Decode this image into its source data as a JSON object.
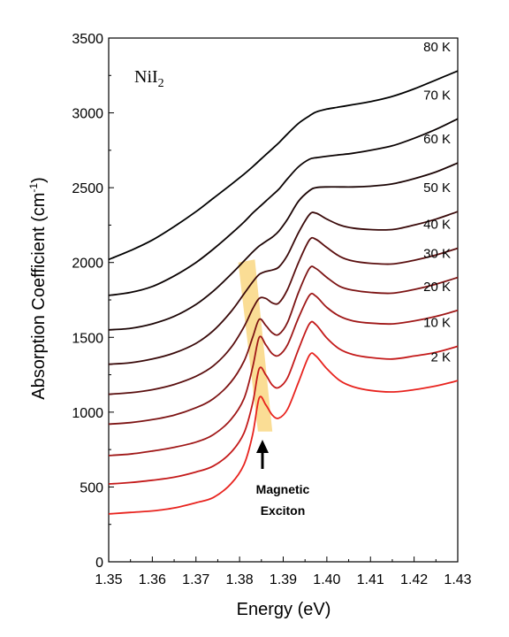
{
  "chart_data": {
    "type": "line",
    "title": "",
    "sample_label": {
      "main": "NiI",
      "subscript": "2"
    },
    "xlabel": "Energy (eV)",
    "ylabel": "Absorption Coefficient (cm",
    "ylabel_sup": "-1",
    "ylabel_close": ")",
    "xlim": [
      1.35,
      1.43
    ],
    "ylim": [
      0,
      3500
    ],
    "xticks": [
      "1.35",
      "1.36",
      "1.37",
      "1.38",
      "1.39",
      "1.40",
      "1.41",
      "1.42",
      "1.43"
    ],
    "yticks": [
      "0",
      "500",
      "1000",
      "1500",
      "2000",
      "2500",
      "3000",
      "3500"
    ],
    "annotation": {
      "line1": "Magnetic",
      "line2": "Exciton"
    },
    "highlight_color": "#fad98a",
    "series": [
      {
        "name": "2 K",
        "color": "#e8231e",
        "points": [
          [
            1.35,
            320
          ],
          [
            1.355,
            330
          ],
          [
            1.36,
            340
          ],
          [
            1.365,
            360
          ],
          [
            1.37,
            395
          ],
          [
            1.374,
            430
          ],
          [
            1.378,
            520
          ],
          [
            1.381,
            650
          ],
          [
            1.383,
            850
          ],
          [
            1.3845,
            1095
          ],
          [
            1.386,
            1050
          ],
          [
            1.3875,
            980
          ],
          [
            1.389,
            960
          ],
          [
            1.391,
            1020
          ],
          [
            1.3935,
            1200
          ],
          [
            1.396,
            1380
          ],
          [
            1.3975,
            1375
          ],
          [
            1.4,
            1290
          ],
          [
            1.403,
            1210
          ],
          [
            1.406,
            1170
          ],
          [
            1.41,
            1145
          ],
          [
            1.415,
            1135
          ],
          [
            1.42,
            1150
          ],
          [
            1.425,
            1175
          ],
          [
            1.43,
            1210
          ]
        ]
      },
      {
        "name": "10 K",
        "color": "#c41a1a",
        "points": [
          [
            1.35,
            520
          ],
          [
            1.355,
            530
          ],
          [
            1.36,
            545
          ],
          [
            1.365,
            565
          ],
          [
            1.37,
            600
          ],
          [
            1.374,
            640
          ],
          [
            1.378,
            730
          ],
          [
            1.381,
            860
          ],
          [
            1.383,
            1060
          ],
          [
            1.3845,
            1290
          ],
          [
            1.386,
            1250
          ],
          [
            1.3875,
            1180
          ],
          [
            1.389,
            1165
          ],
          [
            1.391,
            1230
          ],
          [
            1.3935,
            1420
          ],
          [
            1.396,
            1590
          ],
          [
            1.3975,
            1585
          ],
          [
            1.4,
            1495
          ],
          [
            1.403,
            1420
          ],
          [
            1.406,
            1385
          ],
          [
            1.41,
            1365
          ],
          [
            1.415,
            1355
          ],
          [
            1.42,
            1375
          ],
          [
            1.425,
            1400
          ],
          [
            1.43,
            1440
          ]
        ]
      },
      {
        "name": "20 K",
        "color": "#a01818",
        "points": [
          [
            1.35,
            710
          ],
          [
            1.355,
            720
          ],
          [
            1.36,
            740
          ],
          [
            1.365,
            765
          ],
          [
            1.37,
            800
          ],
          [
            1.374,
            850
          ],
          [
            1.378,
            950
          ],
          [
            1.381,
            1090
          ],
          [
            1.383,
            1300
          ],
          [
            1.3845,
            1500
          ],
          [
            1.386,
            1450
          ],
          [
            1.3875,
            1390
          ],
          [
            1.389,
            1380
          ],
          [
            1.391,
            1450
          ],
          [
            1.3935,
            1630
          ],
          [
            1.396,
            1780
          ],
          [
            1.3975,
            1775
          ],
          [
            1.4,
            1700
          ],
          [
            1.403,
            1640
          ],
          [
            1.406,
            1610
          ],
          [
            1.41,
            1595
          ],
          [
            1.415,
            1590
          ],
          [
            1.42,
            1610
          ],
          [
            1.425,
            1640
          ],
          [
            1.43,
            1680
          ]
        ]
      },
      {
        "name": "30 K",
        "color": "#7d1414",
        "points": [
          [
            1.35,
            920
          ],
          [
            1.355,
            930
          ],
          [
            1.36,
            950
          ],
          [
            1.365,
            980
          ],
          [
            1.37,
            1030
          ],
          [
            1.374,
            1090
          ],
          [
            1.378,
            1200
          ],
          [
            1.381,
            1340
          ],
          [
            1.383,
            1500
          ],
          [
            1.3845,
            1620
          ],
          [
            1.386,
            1580
          ],
          [
            1.3875,
            1530
          ],
          [
            1.389,
            1520
          ],
          [
            1.391,
            1600
          ],
          [
            1.3935,
            1800
          ],
          [
            1.396,
            1960
          ],
          [
            1.3975,
            1960
          ],
          [
            1.4,
            1900
          ],
          [
            1.403,
            1840
          ],
          [
            1.406,
            1815
          ],
          [
            1.41,
            1800
          ],
          [
            1.415,
            1795
          ],
          [
            1.42,
            1820
          ],
          [
            1.425,
            1855
          ],
          [
            1.43,
            1900
          ]
        ]
      },
      {
        "name": "40 K",
        "color": "#5a0f0f",
        "points": [
          [
            1.35,
            1120
          ],
          [
            1.355,
            1130
          ],
          [
            1.36,
            1150
          ],
          [
            1.365,
            1185
          ],
          [
            1.37,
            1240
          ],
          [
            1.374,
            1310
          ],
          [
            1.378,
            1430
          ],
          [
            1.381,
            1570
          ],
          [
            1.383,
            1690
          ],
          [
            1.3845,
            1760
          ],
          [
            1.386,
            1760
          ],
          [
            1.3875,
            1730
          ],
          [
            1.389,
            1730
          ],
          [
            1.391,
            1820
          ],
          [
            1.3935,
            2000
          ],
          [
            1.396,
            2150
          ],
          [
            1.3975,
            2155
          ],
          [
            1.4,
            2100
          ],
          [
            1.403,
            2040
          ],
          [
            1.406,
            2010
          ],
          [
            1.41,
            1995
          ],
          [
            1.415,
            1990
          ],
          [
            1.42,
            2015
          ],
          [
            1.425,
            2050
          ],
          [
            1.43,
            2095
          ]
        ]
      },
      {
        "name": "50 K",
        "color": "#3a0a0a",
        "points": [
          [
            1.35,
            1320
          ],
          [
            1.355,
            1330
          ],
          [
            1.36,
            1355
          ],
          [
            1.365,
            1395
          ],
          [
            1.37,
            1460
          ],
          [
            1.374,
            1545
          ],
          [
            1.378,
            1670
          ],
          [
            1.381,
            1790
          ],
          [
            1.383,
            1870
          ],
          [
            1.3845,
            1920
          ],
          [
            1.386,
            1940
          ],
          [
            1.3875,
            1950
          ],
          [
            1.389,
            1970
          ],
          [
            1.391,
            2050
          ],
          [
            1.3935,
            2200
          ],
          [
            1.396,
            2320
          ],
          [
            1.3975,
            2330
          ],
          [
            1.4,
            2290
          ],
          [
            1.403,
            2250
          ],
          [
            1.406,
            2230
          ],
          [
            1.41,
            2220
          ],
          [
            1.415,
            2220
          ],
          [
            1.42,
            2250
          ],
          [
            1.425,
            2290
          ],
          [
            1.43,
            2340
          ]
        ]
      },
      {
        "name": "60 K",
        "color": "#1c0505",
        "points": [
          [
            1.35,
            1550
          ],
          [
            1.355,
            1560
          ],
          [
            1.36,
            1590
          ],
          [
            1.365,
            1640
          ],
          [
            1.37,
            1720
          ],
          [
            1.374,
            1810
          ],
          [
            1.378,
            1920
          ],
          [
            1.381,
            2010
          ],
          [
            1.383,
            2070
          ],
          [
            1.3845,
            2110
          ],
          [
            1.386,
            2140
          ],
          [
            1.3875,
            2170
          ],
          [
            1.389,
            2210
          ],
          [
            1.391,
            2290
          ],
          [
            1.3935,
            2410
          ],
          [
            1.396,
            2480
          ],
          [
            1.3975,
            2500
          ],
          [
            1.4,
            2505
          ],
          [
            1.403,
            2505
          ],
          [
            1.406,
            2505
          ],
          [
            1.41,
            2510
          ],
          [
            1.415,
            2525
          ],
          [
            1.42,
            2560
          ],
          [
            1.425,
            2605
          ],
          [
            1.43,
            2665
          ]
        ]
      },
      {
        "name": "70 K",
        "color": "#0a0202",
        "points": [
          [
            1.35,
            1780
          ],
          [
            1.355,
            1800
          ],
          [
            1.36,
            1840
          ],
          [
            1.365,
            1910
          ],
          [
            1.37,
            2000
          ],
          [
            1.374,
            2090
          ],
          [
            1.378,
            2190
          ],
          [
            1.381,
            2270
          ],
          [
            1.383,
            2330
          ],
          [
            1.3845,
            2370
          ],
          [
            1.386,
            2410
          ],
          [
            1.3875,
            2450
          ],
          [
            1.389,
            2490
          ],
          [
            1.391,
            2560
          ],
          [
            1.3935,
            2640
          ],
          [
            1.396,
            2690
          ],
          [
            1.3975,
            2700
          ],
          [
            1.4,
            2710
          ],
          [
            1.403,
            2720
          ],
          [
            1.406,
            2730
          ],
          [
            1.41,
            2750
          ],
          [
            1.415,
            2780
          ],
          [
            1.42,
            2830
          ],
          [
            1.425,
            2890
          ],
          [
            1.43,
            2960
          ]
        ]
      },
      {
        "name": "80 K",
        "color": "#000000",
        "points": [
          [
            1.35,
            2020
          ],
          [
            1.355,
            2080
          ],
          [
            1.36,
            2150
          ],
          [
            1.365,
            2240
          ],
          [
            1.37,
            2340
          ],
          [
            1.374,
            2430
          ],
          [
            1.378,
            2520
          ],
          [
            1.381,
            2590
          ],
          [
            1.383,
            2640
          ],
          [
            1.3845,
            2680
          ],
          [
            1.386,
            2720
          ],
          [
            1.3875,
            2760
          ],
          [
            1.389,
            2800
          ],
          [
            1.391,
            2860
          ],
          [
            1.3935,
            2930
          ],
          [
            1.396,
            2980
          ],
          [
            1.3975,
            3005
          ],
          [
            1.4,
            3025
          ],
          [
            1.403,
            3040
          ],
          [
            1.406,
            3055
          ],
          [
            1.41,
            3075
          ],
          [
            1.415,
            3110
          ],
          [
            1.42,
            3160
          ],
          [
            1.425,
            3220
          ],
          [
            1.43,
            3280
          ]
        ]
      }
    ]
  }
}
